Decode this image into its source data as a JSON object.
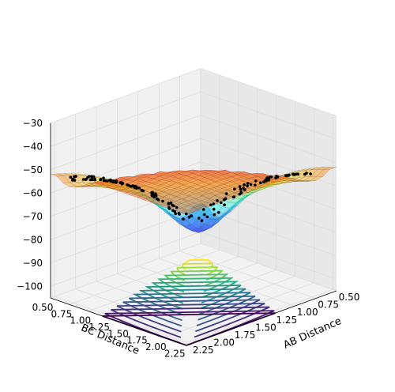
{
  "chart_data": {
    "type": "surface3d",
    "title": "",
    "xlabel": "BC Distance",
    "ylabel": "AB Distance",
    "zlabel": "",
    "x_ticks": [
      "0.50",
      "0.75",
      "1.00",
      "1.25",
      "1.50",
      "1.75",
      "2.00",
      "2.25"
    ],
    "y_ticks": [
      "0.50",
      "0.75",
      "1.00",
      "1.25",
      "1.50",
      "1.75",
      "2.00",
      "2.25"
    ],
    "z_ticks": [
      "−100",
      "−90",
      "−80",
      "−70",
      "−60",
      "−50",
      "−40",
      "−30"
    ],
    "xlim": [
      0.5,
      2.3
    ],
    "ylim": [
      0.5,
      2.3
    ],
    "zlim": [
      -105,
      -30
    ],
    "grid": true,
    "colormap": "jet",
    "contour_colormap": "viridis",
    "series": [
      {
        "kind": "surface",
        "z_range": [
          -104,
          -36
        ]
      },
      {
        "kind": "contour",
        "z_range": [
          -104,
          -36
        ]
      },
      {
        "kind": "trajectory",
        "color": "#000000"
      }
    ]
  }
}
